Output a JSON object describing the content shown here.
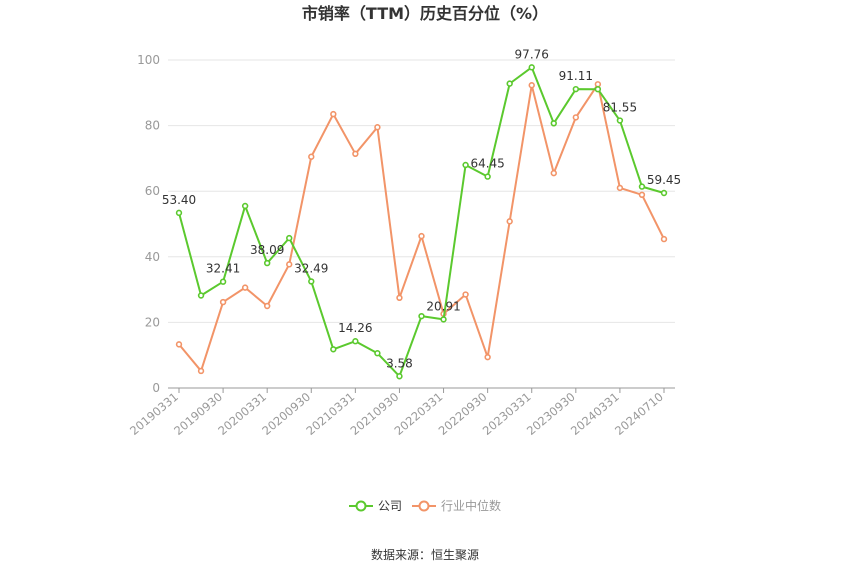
{
  "chart_data": {
    "type": "line",
    "title": "市销率（TTM）历史百分位（%）",
    "xlabel": "",
    "ylabel": "",
    "ylim": [
      0,
      100
    ],
    "yticks": [
      0,
      20,
      40,
      60,
      80,
      100
    ],
    "grid": true,
    "legend_position": "bottom",
    "x_tick_labels": [
      "20190331",
      "20190930",
      "20200331",
      "20200930",
      "20210331",
      "20210930",
      "20220331",
      "20220930",
      "20230331",
      "20230930",
      "20240331",
      "20240710"
    ],
    "series": [
      {
        "name": "公司",
        "color": "#5bc92e",
        "values": [
          53.4,
          28.2,
          32.41,
          55.5,
          38.09,
          45.7,
          32.49,
          11.8,
          14.26,
          10.6,
          3.58,
          21.9,
          20.91,
          68.0,
          64.45,
          92.8,
          97.76,
          80.7,
          91.11,
          91.1,
          81.55,
          61.4,
          59.45
        ]
      },
      {
        "name": "行业中位数",
        "color": "#f29468",
        "values": [
          13.3,
          5.2,
          26.2,
          30.6,
          25.0,
          37.7,
          70.5,
          83.5,
          71.4,
          79.5,
          27.5,
          46.3,
          22.6,
          28.5,
          9.4,
          50.8,
          92.3,
          65.5,
          82.5,
          92.6,
          61.0,
          58.9,
          45.4
        ]
      }
    ],
    "data_labels": [
      {
        "series": 0,
        "index": 0,
        "text": "53.40"
      },
      {
        "series": 0,
        "index": 2,
        "text": "32.41"
      },
      {
        "series": 0,
        "index": 4,
        "text": "38.09"
      },
      {
        "series": 0,
        "index": 6,
        "text": "32.49"
      },
      {
        "series": 0,
        "index": 8,
        "text": "14.26"
      },
      {
        "series": 0,
        "index": 10,
        "text": "3.58"
      },
      {
        "series": 0,
        "index": 12,
        "text": "20.91"
      },
      {
        "series": 0,
        "index": 14,
        "text": "64.45"
      },
      {
        "series": 0,
        "index": 16,
        "text": "97.76"
      },
      {
        "series": 0,
        "index": 18,
        "text": "91.11"
      },
      {
        "series": 0,
        "index": 20,
        "text": "81.55"
      },
      {
        "series": 0,
        "index": 22,
        "text": "59.45"
      }
    ]
  },
  "source_text": "数据来源：恒生聚源",
  "colors": {
    "grid": "#e6e6e6",
    "axis": "#999999",
    "company": "#5bc92e",
    "industry": "#f29468"
  }
}
